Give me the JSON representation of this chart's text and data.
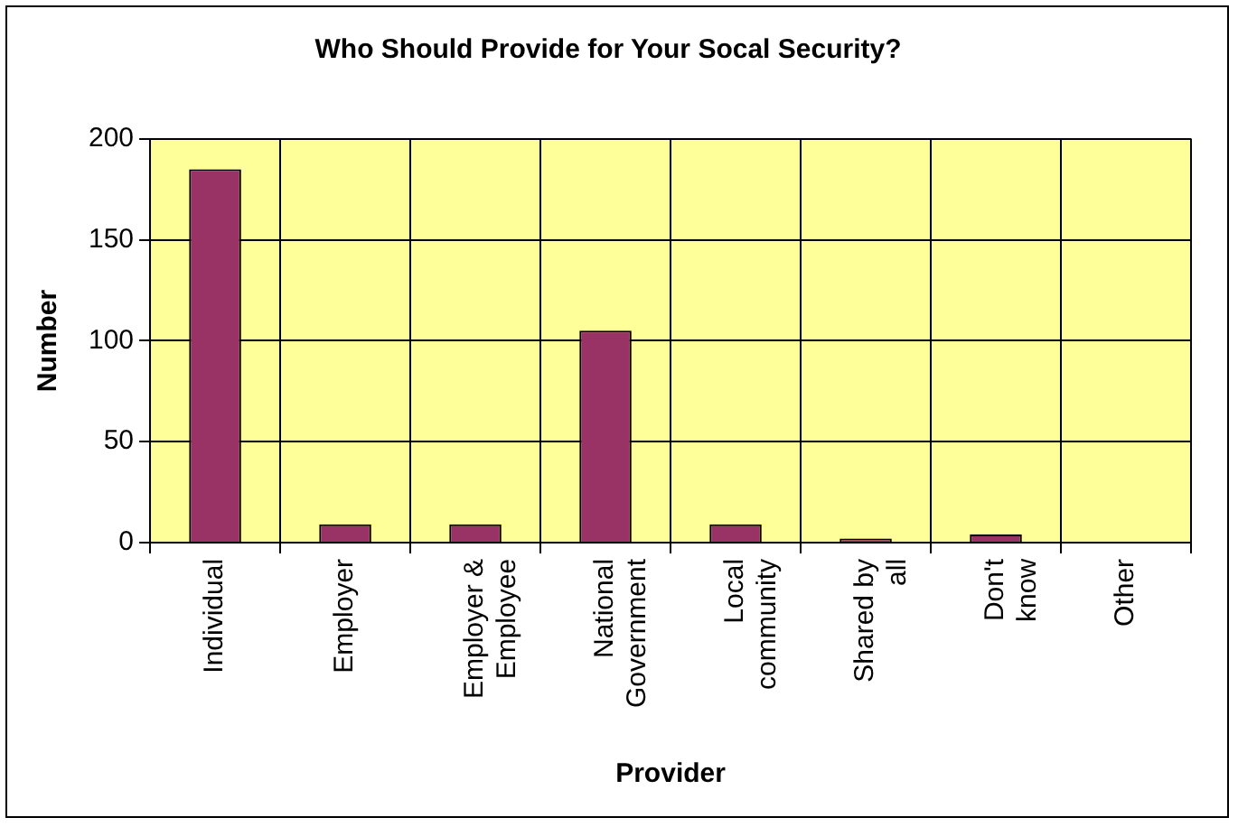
{
  "chart_data": {
    "type": "bar",
    "title": "Who Should Provide for Your Socal Security?",
    "xlabel": "Provider",
    "ylabel": "Number",
    "categories": [
      "Individual",
      "Employer",
      "Employer & Employee",
      "National Government",
      "Local community",
      "Shared by all",
      "Don't know",
      "Other"
    ],
    "values": [
      185,
      9,
      9,
      105,
      9,
      2,
      4,
      0
    ],
    "color": "#993366",
    "ylim": [
      0,
      200
    ],
    "yticks": [
      0,
      50,
      100,
      150,
      200
    ],
    "grid": "y",
    "legend": false
  }
}
